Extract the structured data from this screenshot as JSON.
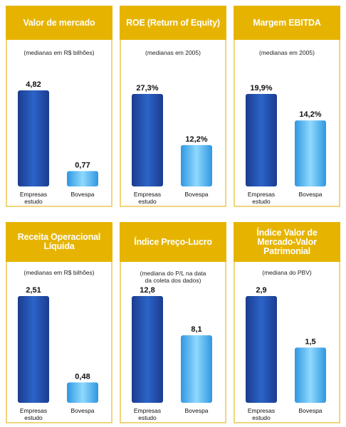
{
  "colors": {
    "header": "#e6b400",
    "border": "#f1d57a",
    "dark_bar": [
      "#1b3c8f",
      "#2c64c8",
      "#1b3c8f"
    ],
    "light_bar": [
      "#2f97e0",
      "#8fd9ff",
      "#2f97e0"
    ]
  },
  "chart_data": [
    {
      "type": "bar",
      "title": "Valor de mercado",
      "subtitle": "(medianas em R$ bilhões)",
      "categories": [
        "Empresas estudo",
        "Bovespa"
      ],
      "values": [
        4.82,
        0.77
      ],
      "value_labels": [
        "4,82",
        "0,77"
      ]
    },
    {
      "type": "bar",
      "title": "ROE (Return of Equity)",
      "subtitle": "(medianas em 2005)",
      "categories": [
        "Empresas estudo",
        "Bovespa"
      ],
      "values": [
        27.3,
        12.2
      ],
      "value_labels": [
        "27,3%",
        "12,2%"
      ]
    },
    {
      "type": "bar",
      "title": "Margem EBITDA",
      "subtitle": "(medianas em 2005)",
      "categories": [
        "Empresas estudo",
        "Bovespa"
      ],
      "values": [
        19.9,
        14.2
      ],
      "value_labels": [
        "19,9%",
        "14,2%"
      ]
    },
    {
      "type": "bar",
      "title": "Receita Operacional Líquida",
      "subtitle": "(medianas em R$ bilhões)",
      "categories": [
        "Empresas estudo",
        "Bovespa"
      ],
      "values": [
        2.51,
        0.48
      ],
      "value_labels": [
        "2,51",
        "0,48"
      ]
    },
    {
      "type": "bar",
      "title": "Índice Preço-Lucro",
      "subtitle": "(mediana do P/L na data da coleta dos dados)",
      "categories": [
        "Empresas estudo",
        "Bovespa"
      ],
      "values": [
        12.8,
        8.1
      ],
      "value_labels": [
        "12,8",
        "8,1"
      ]
    },
    {
      "type": "bar",
      "title": "Índice Valor de Mercado-Valor Patrimonial",
      "subtitle": "(mediana do PBV)",
      "categories": [
        "Empresas estudo",
        "Bovespa"
      ],
      "values": [
        2.9,
        1.5
      ],
      "value_labels": [
        "2,9",
        "1,5"
      ]
    }
  ]
}
